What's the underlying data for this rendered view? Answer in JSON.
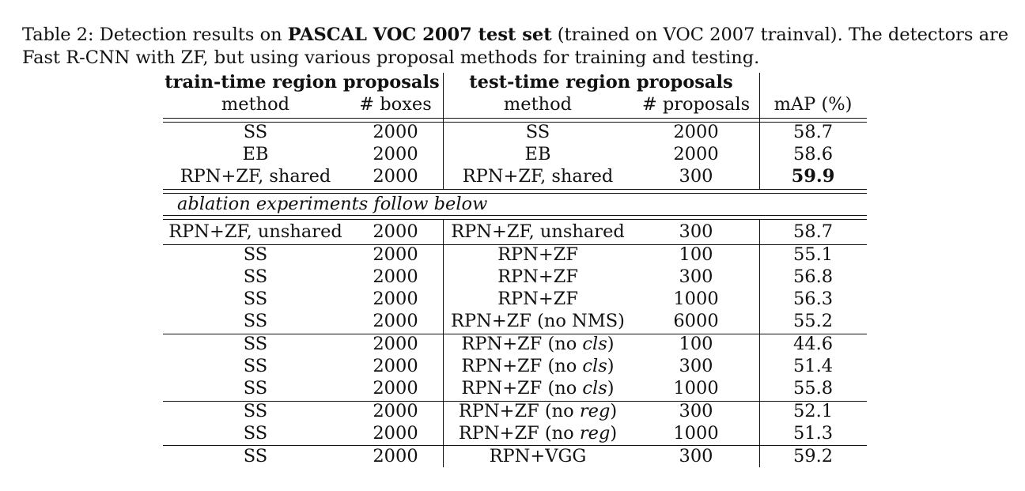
{
  "caption": {
    "prefix": "Table 2: Detection results on ",
    "bold": "PASCAL VOC 2007 test set",
    "suffix": " (trained on VOC 2007 trainval). The detectors are Fast R-CNN with ZF, but using various proposal methods for training and testing."
  },
  "header": {
    "group_train": "train-time region proposals",
    "group_test": "test-time region proposals",
    "col_train_method": "method",
    "col_train_boxes": "# boxes",
    "col_test_method": "method",
    "col_test_proposals": "# proposals",
    "col_map": "mAP (%)"
  },
  "ablation_note": "ablation experiments follow below",
  "rows": [
    {
      "train_method": "SS",
      "boxes": "2000",
      "test_method": "SS",
      "test_suffix": "",
      "test_close": "",
      "proposals": "2000",
      "map": "58.7"
    },
    {
      "train_method": "EB",
      "boxes": "2000",
      "test_method": "EB",
      "test_suffix": "",
      "test_close": "",
      "proposals": "2000",
      "map": "58.6"
    },
    {
      "train_method": "RPN+ZF, shared",
      "boxes": "2000",
      "test_method": "RPN+ZF, shared",
      "test_suffix": "",
      "test_close": "",
      "proposals": "300",
      "map": "59.9"
    },
    {
      "train_method": "RPN+ZF, unshared",
      "boxes": "2000",
      "test_method": "RPN+ZF, unshared",
      "test_suffix": "",
      "test_close": "",
      "proposals": "300",
      "map": "58.7"
    },
    {
      "train_method": "SS",
      "boxes": "2000",
      "test_method": "RPN+ZF",
      "test_suffix": "",
      "test_close": "",
      "proposals": "100",
      "map": "55.1"
    },
    {
      "train_method": "SS",
      "boxes": "2000",
      "test_method": "RPN+ZF",
      "test_suffix": "",
      "test_close": "",
      "proposals": "300",
      "map": "56.8"
    },
    {
      "train_method": "SS",
      "boxes": "2000",
      "test_method": "RPN+ZF",
      "test_suffix": "",
      "test_close": "",
      "proposals": "1000",
      "map": "56.3"
    },
    {
      "train_method": "SS",
      "boxes": "2000",
      "test_method": "RPN+ZF (no NMS)",
      "test_suffix": "",
      "test_close": "",
      "proposals": "6000",
      "map": "55.2"
    },
    {
      "train_method": "SS",
      "boxes": "2000",
      "test_method": "RPN+ZF (no ",
      "test_suffix": "cls",
      "test_close": ")",
      "proposals": "100",
      "map": "44.6"
    },
    {
      "train_method": "SS",
      "boxes": "2000",
      "test_method": "RPN+ZF (no ",
      "test_suffix": "cls",
      "test_close": ")",
      "proposals": "300",
      "map": "51.4"
    },
    {
      "train_method": "SS",
      "boxes": "2000",
      "test_method": "RPN+ZF (no ",
      "test_suffix": "cls",
      "test_close": ")",
      "proposals": "1000",
      "map": "55.8"
    },
    {
      "train_method": "SS",
      "boxes": "2000",
      "test_method": "RPN+ZF (no ",
      "test_suffix": "reg",
      "test_close": ")",
      "proposals": "300",
      "map": "52.1"
    },
    {
      "train_method": "SS",
      "boxes": "2000",
      "test_method": "RPN+ZF (no ",
      "test_suffix": "reg",
      "test_close": ")",
      "proposals": "1000",
      "map": "51.3"
    },
    {
      "train_method": "SS",
      "boxes": "2000",
      "test_method": "RPN+VGG",
      "test_suffix": "",
      "test_close": "",
      "proposals": "300",
      "map": "59.2"
    }
  ]
}
